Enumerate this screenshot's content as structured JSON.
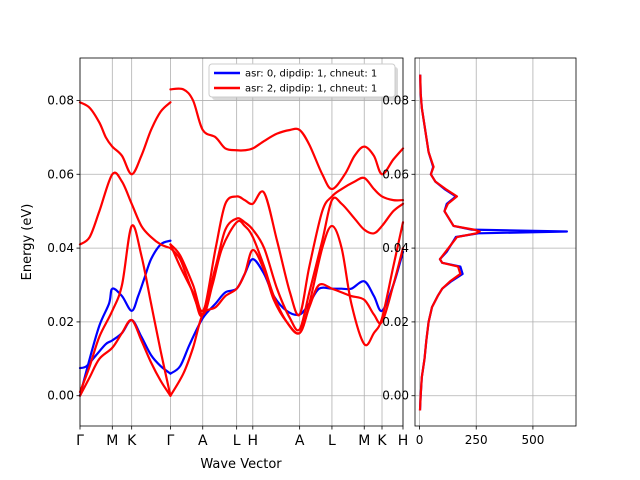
{
  "chart_data": [
    {
      "type": "line",
      "title": "",
      "xlabel": "Wave Vector",
      "ylabel": "Energy (eV)",
      "ylim": [
        -0.0082,
        0.0915
      ],
      "yticks": [
        0.0,
        0.02,
        0.04,
        0.06,
        0.08
      ],
      "ytick_labels": [
        "0.00",
        "0.02",
        "0.04",
        "0.06",
        "0.08"
      ],
      "xlim": [
        0,
        10
      ],
      "xticks": [
        0,
        1,
        1.6,
        2.8,
        3.8,
        4.85,
        5.35,
        6.8,
        7.8,
        8.8,
        9.35,
        10.0
      ],
      "xtick_labels": [
        "Γ",
        "M",
        "K",
        "Γ",
        "A",
        "L",
        "H",
        "A",
        "L",
        "M",
        "K",
        "H"
      ],
      "grid": true,
      "legend_position": "top-right",
      "series": [
        {
          "name": "asr: 0, dipdip: 1, chneut: 1",
          "color": "#0000ff",
          "branches": [
            {
              "x": [
                0,
                0.2,
                0.5,
                0.8,
                1.0,
                1.3,
                1.6,
                1.9,
                2.2,
                2.5,
                2.8
              ],
              "y": [
                0.0075,
                0.008,
                0.011,
                0.014,
                0.015,
                0.017,
                0.0205,
                0.016,
                0.011,
                0.008,
                0.006
              ]
            },
            {
              "x": [
                2.8,
                3.1,
                3.4,
                3.8,
                4.2,
                4.5,
                4.85,
                5.1,
                5.35,
                5.7,
                6.0,
                6.4,
                6.8,
                7.1,
                7.4,
                7.8,
                8.1,
                8.4,
                8.8,
                9.1,
                9.35,
                9.7,
                10.0
              ],
              "y": [
                0.006,
                0.008,
                0.014,
                0.021,
                0.025,
                0.028,
                0.029,
                0.033,
                0.037,
                0.033,
                0.027,
                0.023,
                0.022,
                0.025,
                0.029,
                0.029,
                0.029,
                0.029,
                0.031,
                0.027,
                0.023,
                0.03,
                0.039
              ]
            },
            {
              "x": [
                0,
                0.3,
                0.6,
                0.9,
                1.0,
                1.3,
                1.6,
                1.8,
                2.0,
                2.2,
                2.5,
                2.8
              ],
              "y": [
                0.0,
                0.01,
                0.019,
                0.025,
                0.029,
                0.027,
                0.023,
                0.027,
                0.032,
                0.037,
                0.041,
                0.042
              ]
            }
          ]
        },
        {
          "name": "asr: 2, dipdip: 1, chneut: 1",
          "color": "#ff0000",
          "branches": [
            {
              "x": [
                0,
                0.3,
                0.6,
                0.8,
                1.0,
                1.3,
                1.6,
                1.9,
                2.2,
                2.5,
                2.8
              ],
              "y": [
                0.0795,
                0.078,
                0.074,
                0.07,
                0.0675,
                0.065,
                0.06,
                0.065,
                0.072,
                0.077,
                0.0795
              ]
            },
            {
              "x": [
                2.8,
                3.2,
                3.5,
                3.8,
                4.2,
                4.5,
                4.85,
                5.1,
                5.35,
                5.7,
                6.1,
                6.5,
                6.8,
                7.1,
                7.5,
                7.8,
                8.2,
                8.5,
                8.8,
                9.1,
                9.35,
                9.7,
                10.0
              ],
              "y": [
                0.083,
                0.083,
                0.08,
                0.072,
                0.07,
                0.067,
                0.0665,
                0.0665,
                0.067,
                0.069,
                0.071,
                0.072,
                0.072,
                0.068,
                0.06,
                0.056,
                0.06,
                0.065,
                0.0675,
                0.065,
                0.06,
                0.064,
                0.067
              ]
            },
            {
              "x": [
                0,
                0.3,
                0.6,
                1.0,
                1.3,
                1.6,
                1.9,
                2.2,
                2.5,
                2.8
              ],
              "y": [
                0.041,
                0.043,
                0.05,
                0.06,
                0.058,
                0.052,
                0.046,
                0.043,
                0.041,
                0.04
              ]
            },
            {
              "x": [
                0,
                0.3,
                0.6,
                1.0,
                1.3,
                1.6,
                1.9,
                2.2,
                2.5,
                2.8
              ],
              "y": [
                0.001,
                0.008,
                0.016,
                0.023,
                0.03,
                0.046,
                0.038,
                0.025,
                0.012,
                0.0
              ]
            },
            {
              "x": [
                0,
                0.3,
                0.6,
                1.0,
                1.3,
                1.6,
                1.9,
                2.2,
                2.5,
                2.8
              ],
              "y": [
                0.0,
                0.005,
                0.01,
                0.013,
                0.017,
                0.0205,
                0.015,
                0.009,
                0.004,
                0.0
              ]
            },
            {
              "x": [
                2.8,
                3.2,
                3.5,
                3.8,
                4.2,
                4.5,
                4.85,
                5.1,
                5.35,
                5.7,
                6.0,
                6.4,
                6.8,
                7.1,
                7.4,
                7.8,
                8.1,
                8.4,
                8.8,
                9.1,
                9.35,
                9.7,
                10.0
              ],
              "y": [
                0.0,
                0.006,
                0.013,
                0.022,
                0.024,
                0.027,
                0.029,
                0.033,
                0.0395,
                0.034,
                0.026,
                0.02,
                0.017,
                0.024,
                0.03,
                0.029,
                0.028,
                0.027,
                0.026,
                0.022,
                0.02,
                0.03,
                0.04
              ]
            },
            {
              "x": [
                2.8,
                3.1,
                3.4,
                3.8,
                4.1,
                4.4,
                4.85,
                5.1,
                5.35,
                5.7,
                6.0,
                6.4,
                6.8,
                7.1,
                7.5,
                7.8,
                8.1,
                8.4,
                8.8,
                9.1,
                9.35,
                9.7,
                10.0
              ],
              "y": [
                0.04,
                0.037,
                0.03,
                0.022,
                0.03,
                0.04,
                0.047,
                0.046,
                0.043,
                0.035,
                0.027,
                0.02,
                0.017,
                0.025,
                0.04,
                0.046,
                0.04,
                0.025,
                0.014,
                0.017,
                0.021,
                0.035,
                0.047
              ]
            },
            {
              "x": [
                2.8,
                3.1,
                3.5,
                3.8,
                4.2,
                4.5,
                4.85,
                5.1,
                5.35,
                5.7,
                6.1,
                6.5,
                6.8,
                7.1,
                7.5,
                7.8,
                8.1,
                8.5,
                8.8,
                9.1,
                9.35,
                9.7,
                10.0
              ],
              "y": [
                0.041,
                0.038,
                0.03,
                0.023,
                0.035,
                0.045,
                0.048,
                0.047,
                0.045,
                0.04,
                0.029,
                0.021,
                0.018,
                0.028,
                0.042,
                0.053,
                0.052,
                0.048,
                0.045,
                0.044,
                0.046,
                0.05,
                0.052
              ]
            },
            {
              "x": [
                2.8,
                3.1,
                3.5,
                3.8,
                4.2,
                4.5,
                4.85,
                5.1,
                5.35,
                5.7,
                6.1,
                6.5,
                6.8,
                7.1,
                7.5,
                7.8,
                8.1,
                8.5,
                8.8,
                9.1,
                9.35,
                9.7,
                10.0
              ],
              "y": [
                0.041,
                0.035,
                0.028,
                0.022,
                0.04,
                0.052,
                0.054,
                0.053,
                0.052,
                0.055,
                0.042,
                0.028,
                0.022,
                0.035,
                0.05,
                0.054,
                0.056,
                0.058,
                0.059,
                0.056,
                0.054,
                0.053,
                0.053
              ]
            }
          ]
        }
      ]
    },
    {
      "type": "line",
      "title": "",
      "xlabel": "",
      "ylabel": "",
      "xlim": [
        -20,
        690
      ],
      "ylim": [
        -0.0082,
        0.0915
      ],
      "xticks": [
        0,
        250,
        500
      ],
      "xtick_labels": [
        "0",
        "250",
        "500"
      ],
      "yticks": [
        0.0,
        0.02,
        0.04,
        0.06,
        0.08
      ],
      "ytick_labels": [
        "0.00",
        "0.02",
        "0.04",
        "0.06",
        "0.08"
      ],
      "grid": true,
      "series": [
        {
          "name": "asr: 0, dipdip: 1, chneut: 1",
          "color": "#0000ff",
          "y": [
            -0.004,
            0.0,
            0.005,
            0.01,
            0.015,
            0.02,
            0.024,
            0.027,
            0.029,
            0.031,
            0.033,
            0.035,
            0.036,
            0.037,
            0.039,
            0.041,
            0.043,
            0.044,
            0.0445,
            0.045,
            0.046,
            0.048,
            0.05,
            0.052,
            0.054,
            0.056,
            0.058,
            0.06,
            0.062,
            0.066,
            0.07,
            0.074,
            0.078,
            0.082,
            0.087
          ],
          "x": [
            2,
            5,
            10,
            22,
            30,
            40,
            55,
            80,
            100,
            140,
            190,
            180,
            100,
            90,
            120,
            140,
            160,
            260,
            650,
            230,
            150,
            130,
            110,
            120,
            160,
            110,
            70,
            50,
            60,
            40,
            30,
            20,
            10,
            5,
            3
          ]
        },
        {
          "name": "asr: 2, dipdip: 1, chneut: 1",
          "color": "#ff0000",
          "y": [
            -0.004,
            0.0,
            0.005,
            0.01,
            0.015,
            0.02,
            0.024,
            0.027,
            0.029,
            0.031,
            0.033,
            0.035,
            0.036,
            0.037,
            0.039,
            0.041,
            0.043,
            0.044,
            0.0445,
            0.045,
            0.046,
            0.048,
            0.05,
            0.052,
            0.054,
            0.056,
            0.058,
            0.06,
            0.062,
            0.066,
            0.07,
            0.074,
            0.078,
            0.082,
            0.087
          ],
          "x": [
            2,
            5,
            10,
            22,
            30,
            40,
            55,
            80,
            100,
            135,
            180,
            170,
            100,
            90,
            115,
            140,
            165,
            250,
            265,
            240,
            150,
            130,
            110,
            125,
            165,
            115,
            70,
            50,
            62,
            40,
            30,
            20,
            10,
            5,
            3
          ]
        }
      ]
    }
  ]
}
